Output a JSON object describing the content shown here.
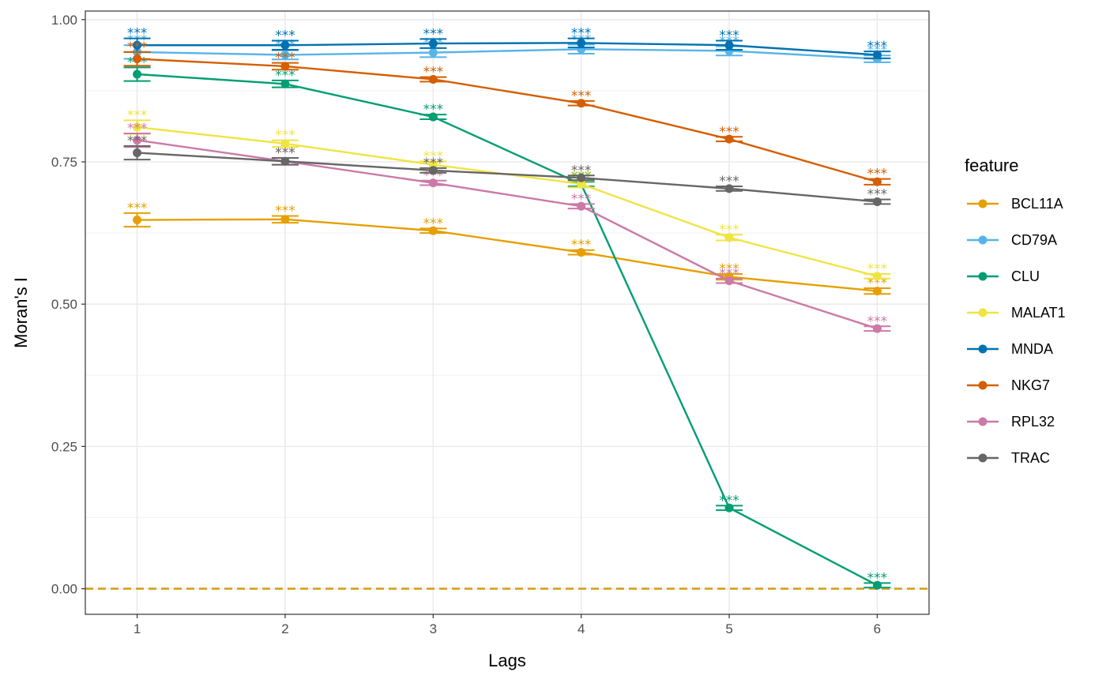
{
  "chart_data": {
    "type": "line",
    "xlabel": "Lags",
    "ylabel": "Moran's I",
    "x": [
      1,
      2,
      3,
      4,
      5,
      6
    ],
    "x_ticks": [
      "1",
      "2",
      "3",
      "4",
      "5",
      "6"
    ],
    "xlim": [
      0.65,
      6.35
    ],
    "ylim": [
      -0.045,
      1.015
    ],
    "y_ticks": [
      "0.00",
      "0.25",
      "0.50",
      "0.75",
      "1.00"
    ],
    "y_tick_values": [
      0,
      0.25,
      0.5,
      0.75,
      1.0
    ],
    "grid": true,
    "reference_line": {
      "y": 0,
      "style": "dashed",
      "color": "#D4A017"
    },
    "significance_label": "***",
    "legend": {
      "title": "feature",
      "position": "right"
    },
    "series": [
      {
        "name": "BCL11A",
        "color": "#E69F00",
        "values": [
          0.648,
          0.649,
          0.629,
          0.591,
          0.548,
          0.523
        ],
        "err": [
          0.012,
          0.006,
          0.004,
          0.004,
          0.005,
          0.005
        ]
      },
      {
        "name": "CD79A",
        "color": "#56B4E9",
        "values": [
          0.943,
          0.938,
          0.942,
          0.948,
          0.945,
          0.931
        ],
        "err": [
          0.012,
          0.008,
          0.008,
          0.008,
          0.008,
          0.006
        ]
      },
      {
        "name": "CLU",
        "color": "#009E73",
        "values": [
          0.904,
          0.887,
          0.829,
          0.711,
          0.142,
          0.006
        ],
        "err": [
          0.012,
          0.006,
          0.004,
          0.004,
          0.004,
          0.004
        ]
      },
      {
        "name": "MALAT1",
        "color": "#F0E442",
        "values": [
          0.811,
          0.782,
          0.745,
          0.711,
          0.617,
          0.549
        ],
        "err": [
          0.012,
          0.006,
          0.006,
          0.006,
          0.005,
          0.004
        ]
      },
      {
        "name": "MNDA",
        "color": "#0072B2",
        "values": [
          0.955,
          0.955,
          0.958,
          0.959,
          0.955,
          0.938
        ],
        "err": [
          0.012,
          0.008,
          0.008,
          0.008,
          0.008,
          0.006
        ]
      },
      {
        "name": "NKG7",
        "color": "#D55E00",
        "values": [
          0.931,
          0.918,
          0.895,
          0.853,
          0.79,
          0.715
        ],
        "err": [
          0.012,
          0.006,
          0.004,
          0.004,
          0.004,
          0.005
        ]
      },
      {
        "name": "RPL32",
        "color": "#CC79A7",
        "values": [
          0.788,
          0.751,
          0.713,
          0.672,
          0.541,
          0.457
        ],
        "err": [
          0.012,
          0.006,
          0.004,
          0.004,
          0.004,
          0.004
        ]
      },
      {
        "name": "TRAC",
        "color": "#666666",
        "values": [
          0.766,
          0.751,
          0.735,
          0.722,
          0.703,
          0.68
        ],
        "err": [
          0.012,
          0.006,
          0.004,
          0.004,
          0.004,
          0.004
        ]
      }
    ]
  }
}
